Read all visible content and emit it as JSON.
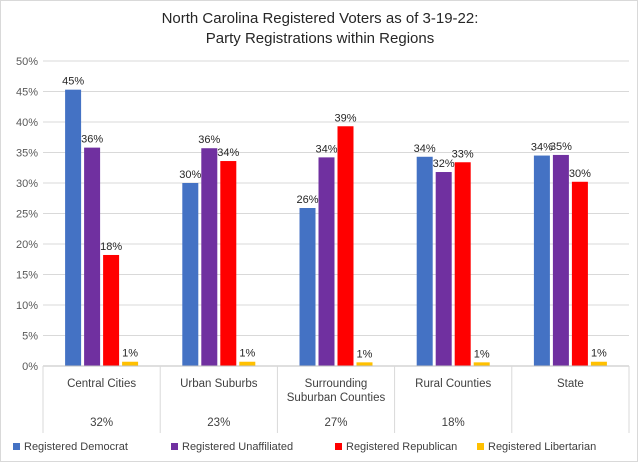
{
  "chart_data": {
    "type": "bar",
    "title_lines": [
      "North Carolina Registered Voters as of 3-19-22:",
      "Party Registrations within Regions"
    ],
    "categories": [
      {
        "lines": [
          "Central Cities"
        ],
        "share": "32%"
      },
      {
        "lines": [
          "Urban Suburbs"
        ],
        "share": "23%"
      },
      {
        "lines": [
          "Surrounding",
          "Suburban Counties"
        ],
        "share": "27%"
      },
      {
        "lines": [
          "Rural Counties"
        ],
        "share": "18%"
      },
      {
        "lines": [
          "State"
        ],
        "share": ""
      }
    ],
    "series": [
      {
        "name": "Registered Democrat",
        "color": "#4472c4",
        "values": [
          45.3,
          30.0,
          25.9,
          34.3,
          34.5
        ],
        "labels": [
          "45%",
          "30%",
          "26%",
          "34%",
          "34%"
        ]
      },
      {
        "name": "Registered Unaffiliated",
        "color": "#7030a0",
        "values": [
          35.8,
          35.7,
          34.2,
          31.8,
          34.6
        ],
        "labels": [
          "36%",
          "36%",
          "34%",
          "32%",
          "35%"
        ]
      },
      {
        "name": "Registered Republican",
        "color": "#ff0000",
        "values": [
          18.2,
          33.6,
          39.3,
          33.4,
          30.2
        ],
        "labels": [
          "18%",
          "34%",
          "39%",
          "33%",
          "30%"
        ]
      },
      {
        "name": "Registered Libertarian",
        "color": "#ffc000",
        "values": [
          0.7,
          0.7,
          0.6,
          0.6,
          0.7
        ],
        "labels": [
          "1%",
          "1%",
          "1%",
          "1%",
          "1%"
        ]
      }
    ],
    "y_ticks": [
      "0%",
      "5%",
      "10%",
      "15%",
      "20%",
      "25%",
      "30%",
      "35%",
      "40%",
      "45%",
      "50%"
    ],
    "ylim": [
      0,
      50
    ],
    "grid": true,
    "legend_position": "bottom"
  }
}
